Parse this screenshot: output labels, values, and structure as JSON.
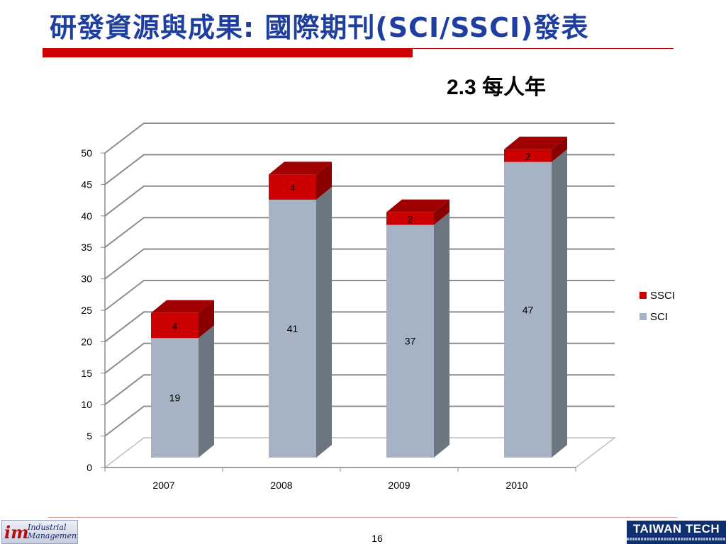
{
  "title": "研發資源與成果: 國際期刊(SCI/SSCI)發表",
  "subtitle": "2.3 每人年",
  "page_number": "16",
  "footer": {
    "left_logo_mark": "im",
    "left_logo_line1": "Industrial",
    "left_logo_line2": "Management",
    "right_logo_name": "TAIWAN TECH"
  },
  "colors": {
    "title": "#1f3fa0",
    "accent_bar": "#d00000",
    "sci": "#a5b3c5",
    "ssci": "#cc0000"
  },
  "chart_data": {
    "type": "bar",
    "stacked": true,
    "three_d": true,
    "categories": [
      "2007",
      "2008",
      "2009",
      "2010"
    ],
    "series": [
      {
        "name": "SCI",
        "values": [
          19,
          41,
          37,
          47
        ],
        "color": "#a5b3c5"
      },
      {
        "name": "SSCI",
        "values": [
          4,
          4,
          2,
          2
        ],
        "color": "#cc0000"
      }
    ],
    "ylim": [
      0,
      50
    ],
    "yticks": [
      0,
      5,
      10,
      15,
      20,
      25,
      30,
      35,
      40,
      45,
      50
    ],
    "grid": true,
    "legend": "right",
    "legend_order": [
      "SSCI",
      "SCI"
    ],
    "data_labels": true,
    "xlabel": "",
    "ylabel": ""
  }
}
